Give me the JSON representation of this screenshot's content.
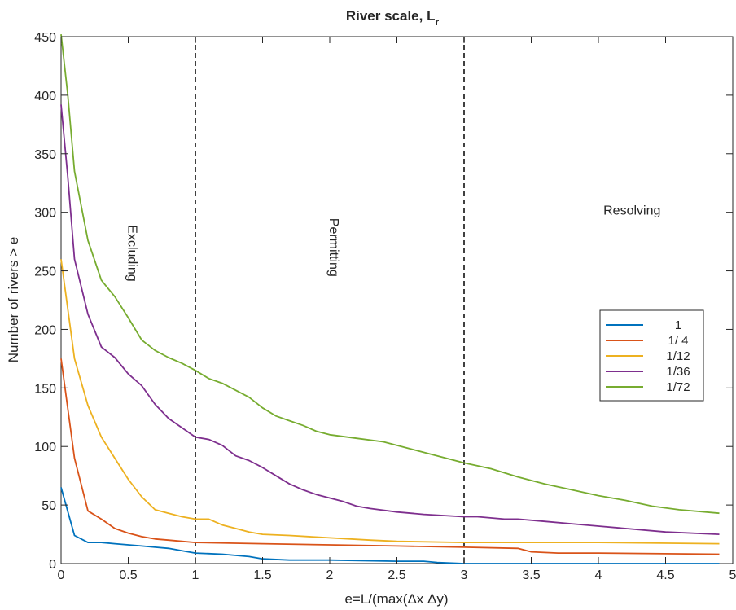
{
  "chart_data": {
    "type": "line",
    "title": "River scale, L",
    "title_subscript": "r",
    "xlabel": "e=L/(max(Δx Δy)",
    "ylabel": "Number of rivers > e",
    "xlim": [
      0,
      5
    ],
    "ylim": [
      0,
      450
    ],
    "xticks": [
      0,
      0.5,
      1,
      1.5,
      2,
      2.5,
      3,
      3.5,
      4,
      4.5,
      5
    ],
    "xtick_labels": [
      "0",
      "0.5",
      "1",
      "1.5",
      "2",
      "2.5",
      "3",
      "3.5",
      "4",
      "4.5",
      "5"
    ],
    "yticks": [
      0,
      50,
      100,
      150,
      200,
      250,
      300,
      350,
      400,
      450
    ],
    "ytick_labels": [
      "0",
      "50",
      "100",
      "150",
      "200",
      "250",
      "300",
      "350",
      "400",
      "450"
    ],
    "grid": false,
    "legend_position": "right",
    "vlines": [
      1,
      3
    ],
    "regions": [
      {
        "label": "Excluding",
        "x": 0.5,
        "y": 265,
        "rotated": true
      },
      {
        "label": "Permitting",
        "x": 2.0,
        "y": 270,
        "rotated": true
      },
      {
        "label": "Resolving",
        "x": 4.25,
        "y": 298,
        "rotated": false
      }
    ],
    "series": [
      {
        "name": "1",
        "color": "#0072BD",
        "x": [
          0,
          0.1,
          0.2,
          0.3,
          0.4,
          0.5,
          0.6,
          0.7,
          0.8,
          0.9,
          1.0,
          1.2,
          1.4,
          1.5,
          1.7,
          2.0,
          2.5,
          2.7,
          2.8,
          3.0,
          4.0,
          4.9
        ],
        "y": [
          65,
          24,
          18,
          18,
          17,
          16,
          15,
          14,
          13,
          11,
          9,
          8,
          6,
          4,
          3,
          3,
          2,
          2,
          1,
          0,
          0,
          0
        ]
      },
      {
        "name": "1/ 4",
        "color": "#D95319",
        "x": [
          0,
          0.1,
          0.2,
          0.3,
          0.4,
          0.5,
          0.6,
          0.7,
          0.8,
          0.9,
          1.0,
          1.5,
          2.0,
          2.5,
          3.0,
          3.4,
          3.5,
          3.7,
          4.0,
          4.9
        ],
        "y": [
          175,
          90,
          45,
          38,
          30,
          26,
          23,
          21,
          20,
          19,
          18,
          17,
          16,
          15,
          14,
          13,
          10,
          9,
          9,
          8
        ]
      },
      {
        "name": "1/12",
        "color": "#EDB120",
        "x": [
          0,
          0.1,
          0.2,
          0.3,
          0.4,
          0.5,
          0.6,
          0.7,
          0.8,
          0.9,
          1.0,
          1.1,
          1.2,
          1.3,
          1.4,
          1.5,
          1.7,
          2.0,
          2.3,
          2.5,
          3.0,
          4.0,
          4.9
        ],
        "y": [
          260,
          175,
          135,
          108,
          90,
          72,
          57,
          46,
          43,
          40,
          38,
          38,
          33,
          30,
          27,
          25,
          24,
          22,
          20,
          19,
          18,
          18,
          17
        ]
      },
      {
        "name": "1/36",
        "color": "#7E2F8E",
        "x": [
          0,
          0.05,
          0.1,
          0.2,
          0.3,
          0.4,
          0.5,
          0.6,
          0.7,
          0.8,
          0.9,
          1.0,
          1.1,
          1.2,
          1.3,
          1.4,
          1.5,
          1.6,
          1.7,
          1.8,
          1.9,
          2.0,
          2.1,
          2.2,
          2.3,
          2.5,
          2.7,
          3.0,
          3.1,
          3.3,
          3.4,
          3.6,
          3.8,
          4.0,
          4.2,
          4.5,
          4.9
        ],
        "y": [
          392,
          330,
          260,
          213,
          185,
          176,
          162,
          152,
          136,
          124,
          116,
          108,
          106,
          101,
          92,
          88,
          82,
          75,
          68,
          63,
          59,
          56,
          53,
          49,
          47,
          44,
          42,
          40,
          40,
          38,
          38,
          36,
          34,
          32,
          30,
          27,
          25
        ]
      },
      {
        "name": "1/72",
        "color": "#77AC30",
        "x": [
          0,
          0.05,
          0.1,
          0.2,
          0.3,
          0.4,
          0.5,
          0.6,
          0.7,
          0.8,
          0.9,
          1.0,
          1.1,
          1.2,
          1.3,
          1.4,
          1.5,
          1.6,
          1.7,
          1.8,
          1.9,
          2.0,
          2.2,
          2.4,
          2.6,
          2.8,
          3.0,
          3.2,
          3.4,
          3.6,
          3.8,
          4.0,
          4.2,
          4.4,
          4.6,
          4.9
        ],
        "y": [
          452,
          400,
          335,
          276,
          242,
          228,
          210,
          191,
          182,
          176,
          171,
          165,
          158,
          154,
          148,
          142,
          133,
          126,
          122,
          118,
          113,
          110,
          107,
          104,
          98,
          92,
          86,
          81,
          74,
          68,
          63,
          58,
          54,
          49,
          46,
          43
        ]
      }
    ]
  }
}
